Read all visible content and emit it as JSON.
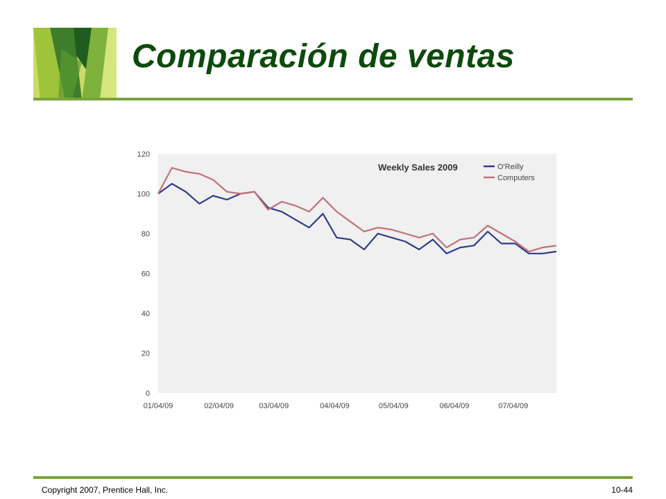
{
  "slide": {
    "title": "Comparación de ventas",
    "footer_left": "Copyright 2007, Prentice Hall, Inc.",
    "footer_right": "10-44"
  },
  "colors": {
    "title": "#0d4a0d",
    "rule": "#7aa33a",
    "plot_bg": "#f0f0f0"
  },
  "chart_data": {
    "type": "line",
    "title": "Weekly Sales 2009",
    "xlabel": "",
    "ylabel": "",
    "ylim": [
      0,
      120
    ],
    "yticks": [
      0,
      20,
      40,
      60,
      80,
      100,
      120
    ],
    "xlim": [
      "2009-01-04",
      "2009-07-26"
    ],
    "xtick_labels": [
      "01/04/09",
      "02/04/09",
      "03/04/09",
      "04/04/09",
      "05/04/09",
      "06/04/09",
      "07/04/09"
    ],
    "xtick_dates": [
      "2009-01-04",
      "2009-02-04",
      "2009-03-04",
      "2009-04-04",
      "2009-05-04",
      "2009-06-04",
      "2009-07-04"
    ],
    "grid": false,
    "legend_position": "top-right",
    "x": [
      "2009-01-04",
      "2009-01-11",
      "2009-01-18",
      "2009-01-25",
      "2009-02-01",
      "2009-02-08",
      "2009-02-15",
      "2009-02-22",
      "2009-03-01",
      "2009-03-08",
      "2009-03-15",
      "2009-03-22",
      "2009-03-29",
      "2009-04-05",
      "2009-04-12",
      "2009-04-19",
      "2009-04-26",
      "2009-05-03",
      "2009-05-10",
      "2009-05-17",
      "2009-05-24",
      "2009-05-31",
      "2009-06-07",
      "2009-06-14",
      "2009-06-21",
      "2009-06-28",
      "2009-07-05",
      "2009-07-12",
      "2009-07-19",
      "2009-07-26"
    ],
    "series": [
      {
        "name": "O'Reilly",
        "color": "#2e3a8c",
        "values": [
          100,
          105,
          101,
          95,
          99,
          97,
          100,
          101,
          93,
          91,
          87,
          83,
          90,
          78,
          77,
          72,
          80,
          78,
          76,
          72,
          77,
          70,
          73,
          74,
          81,
          75,
          75,
          70,
          70,
          71
        ]
      },
      {
        "name": "Computers",
        "color": "#c07078",
        "values": [
          100,
          113,
          111,
          110,
          107,
          101,
          100,
          101,
          92,
          96,
          94,
          91,
          98,
          91,
          86,
          81,
          83,
          82,
          80,
          78,
          80,
          73,
          77,
          78,
          84,
          80,
          76,
          71,
          73,
          74
        ]
      }
    ]
  }
}
